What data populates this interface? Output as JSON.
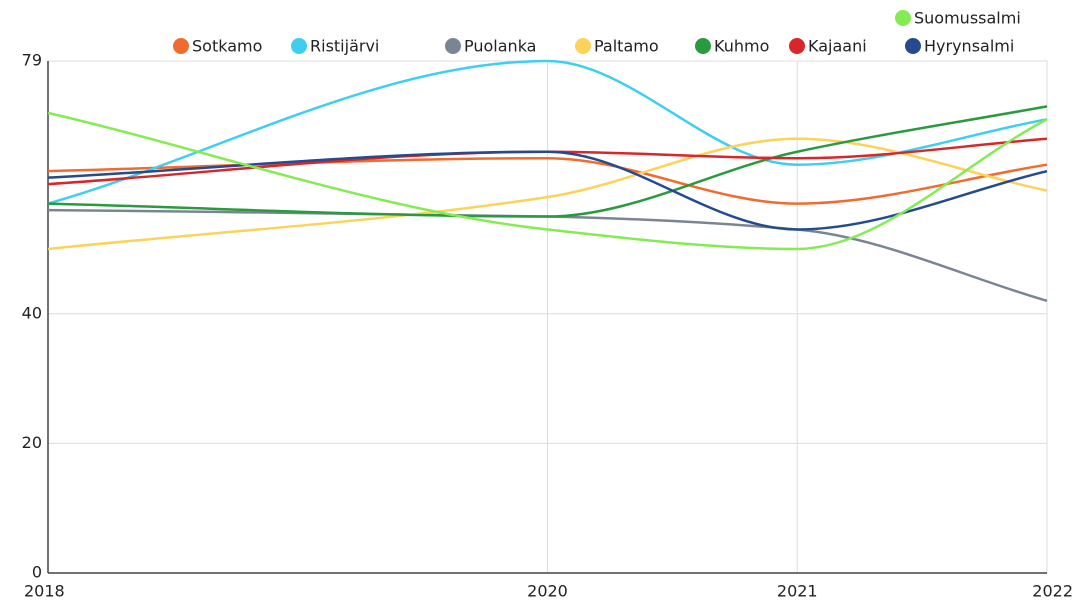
{
  "chart_data": {
    "type": "line",
    "x": [
      2018,
      2020,
      2021,
      2022
    ],
    "xlim": [
      2018,
      2022
    ],
    "xticks": [
      2018,
      2020,
      2021,
      2022
    ],
    "ylim": [
      0,
      79
    ],
    "yticks": [
      0,
      20,
      40,
      79
    ],
    "grid": true,
    "series": [
      {
        "name": "Sotkamo",
        "color": "#f26b2e",
        "values": [
          62,
          64,
          57,
          63
        ]
      },
      {
        "name": "Ristijärvi",
        "color": "#3ecff0",
        "values": [
          57,
          79,
          63,
          70
        ]
      },
      {
        "name": "Puolanka",
        "color": "#7a8593",
        "values": [
          56,
          55,
          53,
          42
        ]
      },
      {
        "name": "Paltamo",
        "color": "#fbd35a",
        "values": [
          50,
          58,
          67,
          59
        ]
      },
      {
        "name": "Kuhmo",
        "color": "#2a9a3e",
        "values": [
          57,
          55,
          65,
          72
        ]
      },
      {
        "name": "Kajaani",
        "color": "#d9262a",
        "values": [
          60,
          65,
          64,
          67
        ]
      },
      {
        "name": "Hyrynsalmi",
        "color": "#234b8e",
        "values": [
          61,
          65,
          53,
          62
        ]
      },
      {
        "name": "Suomussalmi",
        "color": "#84ec52",
        "values": [
          71,
          53,
          50,
          70
        ]
      }
    ]
  }
}
